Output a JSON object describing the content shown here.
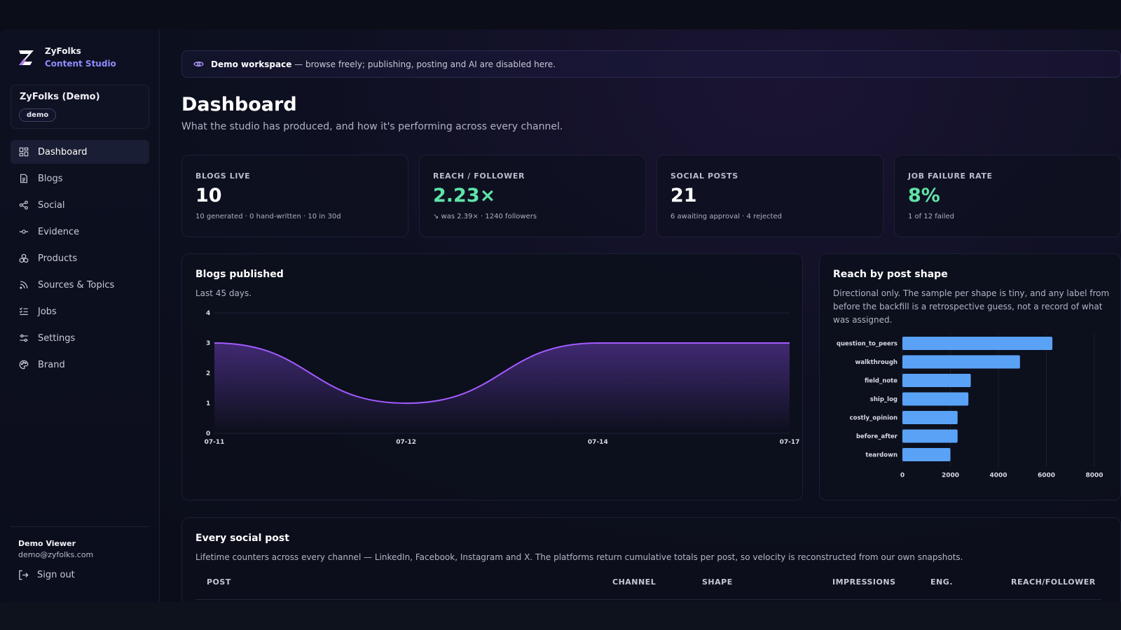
{
  "brand": {
    "name": "ZyFolks",
    "product": "Content Studio"
  },
  "workspace": {
    "name": "ZyFolks (Demo)",
    "badge": "demo"
  },
  "nav": {
    "items": [
      {
        "label": "Dashboard",
        "icon": "dashboard-icon",
        "active": true
      },
      {
        "label": "Blogs",
        "icon": "document-icon"
      },
      {
        "label": "Social",
        "icon": "share-icon"
      },
      {
        "label": "Evidence",
        "icon": "commit-icon"
      },
      {
        "label": "Products",
        "icon": "boxes-icon"
      },
      {
        "label": "Sources & Topics",
        "icon": "rss-icon"
      },
      {
        "label": "Jobs",
        "icon": "list-checks-icon"
      },
      {
        "label": "Settings",
        "icon": "sliders-icon"
      },
      {
        "label": "Brand",
        "icon": "palette-icon"
      }
    ]
  },
  "user": {
    "name": "Demo Viewer",
    "email": "demo@zyfolks.com",
    "signout": "Sign out"
  },
  "banner": {
    "strong": "Demo workspace",
    "text": " — browse freely; publishing, posting and AI are disabled here."
  },
  "page": {
    "title": "Dashboard",
    "subtitle": "What the studio has produced, and how it's performing across every channel."
  },
  "stats": [
    {
      "label": "BLOGS LIVE",
      "value": "10",
      "note": "10 generated · 0 hand-written · 10 in 30d"
    },
    {
      "label": "REACH / FOLLOWER",
      "value": "2.23×",
      "note": "↘ was 2.39× · 1240 followers"
    },
    {
      "label": "SOCIAL POSTS",
      "value": "21",
      "note": "6 awaiting approval · 4 rejected"
    },
    {
      "label": "JOB FAILURE RATE",
      "value": "8%",
      "note": "1 of 12 failed"
    }
  ],
  "blogs_card": {
    "title": "Blogs published",
    "subtitle": "Last 45 days."
  },
  "reach_card": {
    "title": "Reach by post shape",
    "subtitle": "Directional only. The sample per shape is tiny, and any label from before the backfill is a retrospective guess, not a record of what was assigned."
  },
  "chart_data": [
    {
      "type": "area",
      "x": [
        "07-11",
        "07-12",
        "07-14",
        "07-17"
      ],
      "y": [
        3,
        1,
        3,
        3
      ],
      "ylim": [
        0,
        4
      ],
      "yticks": [
        "0",
        "1",
        "2",
        "3",
        "4"
      ],
      "color": "#a35bff",
      "grid": false
    },
    {
      "type": "bar",
      "orientation": "horizontal",
      "categories": [
        "question_to_peers",
        "walkthrough",
        "field_note",
        "ship_log",
        "costly_opinion",
        "before_after",
        "teardown"
      ],
      "values": [
        6250,
        4900,
        2850,
        2750,
        2300,
        2300,
        2000
      ],
      "xlim": [
        0,
        8000
      ],
      "xticks": [
        "0",
        "2000",
        "4000",
        "6000",
        "8000"
      ],
      "color": "#5aa2f5",
      "grid": true
    }
  ],
  "posts_table": {
    "title": "Every social post",
    "subtitle": "Lifetime counters across every channel — LinkedIn, Facebook, Instagram and X. The platforms return cumulative totals per post, so velocity is reconstructed from our own snapshots.",
    "columns": [
      "POST",
      "CHANNEL",
      "SHAPE",
      "IMPRESSIONS",
      "ENG.",
      "REACH/FOLLOWER"
    ]
  }
}
